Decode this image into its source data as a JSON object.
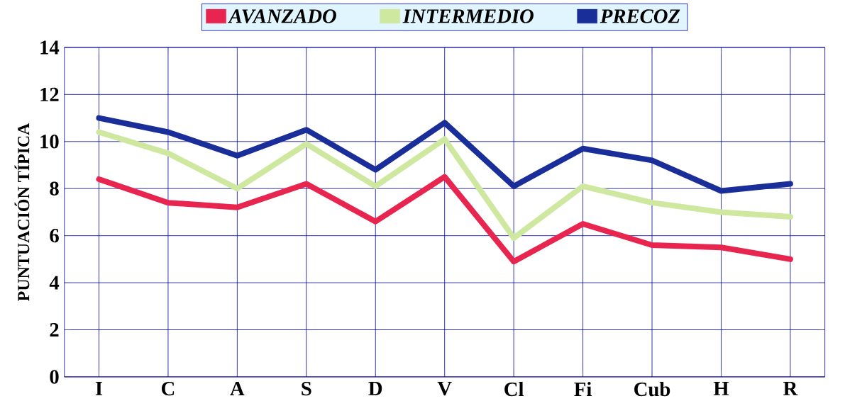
{
  "chart_data": {
    "type": "line",
    "ylabel": "PUNTUACIÓN TÍPICA",
    "categories": [
      "I",
      "C",
      "A",
      "S",
      "D",
      "V",
      "Cl",
      "Fi",
      "Cub",
      "H",
      "R"
    ],
    "series": [
      {
        "name": "AVANZADO",
        "color": "#e8254e",
        "values": [
          8.4,
          7.4,
          7.2,
          8.2,
          6.6,
          8.5,
          4.9,
          6.5,
          5.6,
          5.5,
          5.0
        ]
      },
      {
        "name": "INTERMEDIO",
        "color": "#cfe8a0",
        "values": [
          10.4,
          9.5,
          8.0,
          9.9,
          8.1,
          10.1,
          5.9,
          8.1,
          7.4,
          7.0,
          6.8
        ]
      },
      {
        "name": "PRECOZ",
        "color": "#1a2e9a",
        "values": [
          11.0,
          10.4,
          9.4,
          10.5,
          8.8,
          10.8,
          8.1,
          9.7,
          9.2,
          7.9,
          8.2
        ]
      }
    ],
    "ylim": [
      0,
      14
    ],
    "yticks": [
      0,
      2,
      4,
      6,
      8,
      10,
      12,
      14
    ],
    "grid": true,
    "legend": "top"
  }
}
